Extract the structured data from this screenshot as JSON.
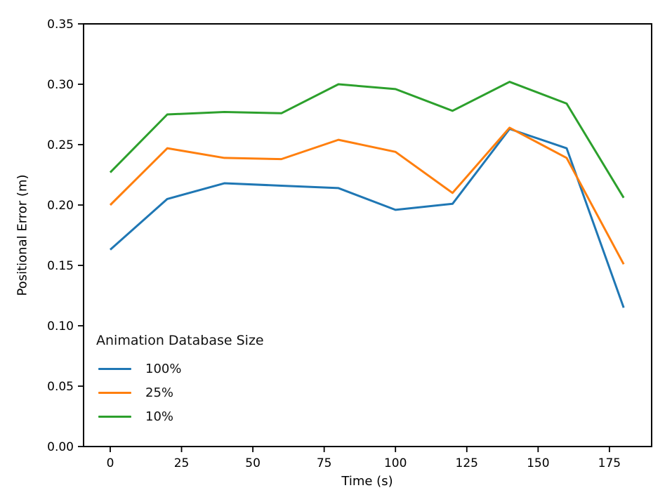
{
  "chart_data": {
    "type": "line",
    "title": "",
    "xlabel": "Time (s)",
    "ylabel": "Positional Error (m)",
    "x": [
      0,
      20,
      40,
      60,
      80,
      100,
      120,
      140,
      160,
      180
    ],
    "series": [
      {
        "name": "100%",
        "color": "#1f77b4",
        "values": [
          0.163,
          0.205,
          0.218,
          0.216,
          0.214,
          0.196,
          0.201,
          0.263,
          0.247,
          0.115
        ]
      },
      {
        "name": "25%",
        "color": "#ff7f0e",
        "values": [
          0.2,
          0.247,
          0.239,
          0.238,
          0.254,
          0.244,
          0.21,
          0.264,
          0.239,
          0.151
        ]
      },
      {
        "name": "10%",
        "color": "#2ca02c",
        "values": [
          0.227,
          0.275,
          0.277,
          0.276,
          0.3,
          0.296,
          0.278,
          0.302,
          0.284,
          0.206
        ]
      }
    ],
    "xlim": [
      -9.35,
      189.8
    ],
    "ylim": [
      0,
      0.35
    ],
    "xticks": [
      0,
      25,
      50,
      75,
      100,
      125,
      150,
      175
    ],
    "yticks": [
      0.0,
      0.05,
      0.1,
      0.15,
      0.2,
      0.25,
      0.3,
      0.35
    ],
    "ytick_decimals": 2,
    "grid": false,
    "line_width": 3,
    "axis_color": "#000000",
    "legend": {
      "title": "Animation Database Size",
      "position": "lower-left",
      "entries": [
        "100%",
        "25%",
        "10%"
      ]
    }
  }
}
